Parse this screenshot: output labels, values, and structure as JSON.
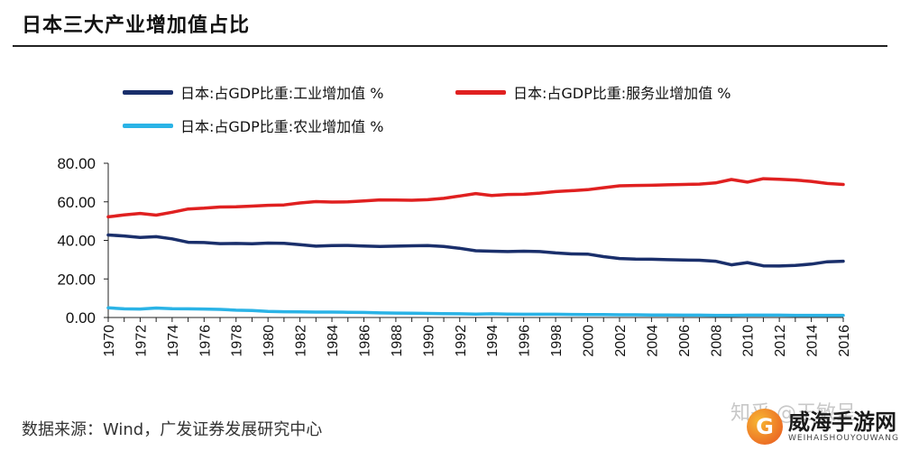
{
  "title": "日本三大产业增加值占比",
  "source": "数据来源：Wind，广发证券发展研究中心",
  "watermark": "知乎 @王敏呈",
  "logo": {
    "main": "威海手游网",
    "sub": "WEIHAISHOUYOUWANG"
  },
  "legend": [
    {
      "label": "日本:占GDP比重:工业增加值 %",
      "color": "#1a2f6b"
    },
    {
      "label": "日本:占GDP比重:服务业增加值 %",
      "color": "#e02020"
    },
    {
      "label": "日本:占GDP比重:农业增加值 %",
      "color": "#2ab3e6"
    }
  ],
  "chart_data": {
    "type": "line",
    "ylim": [
      0,
      80
    ],
    "yticks": [
      "0.00",
      "20.00",
      "40.00",
      "60.00",
      "80.00"
    ],
    "xticks": [
      "1970",
      "1972",
      "1974",
      "1976",
      "1978",
      "1980",
      "1982",
      "1984",
      "1986",
      "1988",
      "1990",
      "1992",
      "1994",
      "1996",
      "1998",
      "2000",
      "2002",
      "2004",
      "2006",
      "2008",
      "2010",
      "2012",
      "2014",
      "2016"
    ],
    "x": [
      1970,
      1971,
      1972,
      1973,
      1974,
      1975,
      1976,
      1977,
      1978,
      1979,
      1980,
      1981,
      1982,
      1983,
      1984,
      1985,
      1986,
      1987,
      1988,
      1989,
      1990,
      1991,
      1992,
      1993,
      1994,
      1995,
      1996,
      1997,
      1998,
      1999,
      2000,
      2001,
      2002,
      2003,
      2004,
      2005,
      2006,
      2007,
      2008,
      2009,
      2010,
      2011,
      2012,
      2013,
      2014,
      2015,
      2016
    ],
    "series": [
      {
        "name": "日本:占GDP比重:工业增加值 %",
        "color": "#1a2f6b",
        "values": [
          42.8,
          42.3,
          41.5,
          41.9,
          40.8,
          39.0,
          38.9,
          38.3,
          38.4,
          38.2,
          38.6,
          38.5,
          37.8,
          37.0,
          37.3,
          37.4,
          37.1,
          36.8,
          37.0,
          37.2,
          37.3,
          36.8,
          35.9,
          34.6,
          34.4,
          34.2,
          34.4,
          34.2,
          33.5,
          33.0,
          32.9,
          31.6,
          30.6,
          30.3,
          30.2,
          30.0,
          29.8,
          29.7,
          29.2,
          27.3,
          28.5,
          26.8,
          26.7,
          27.0,
          27.7,
          28.9,
          29.2
        ]
      },
      {
        "name": "日本:占GDP比重:服务业增加值 %",
        "color": "#e02020",
        "values": [
          52.2,
          53.2,
          54.0,
          53.1,
          54.6,
          56.3,
          56.7,
          57.3,
          57.4,
          57.8,
          58.2,
          58.4,
          59.4,
          60.1,
          59.9,
          60.0,
          60.5,
          61.0,
          60.9,
          60.8,
          61.1,
          61.8,
          63.0,
          64.3,
          63.3,
          63.8,
          63.9,
          64.5,
          65.3,
          65.8,
          66.3,
          67.3,
          68.3,
          68.5,
          68.6,
          68.8,
          69.0,
          69.2,
          69.8,
          71.6,
          70.2,
          72.0,
          71.7,
          71.3,
          70.6,
          69.5,
          69.0
        ]
      },
      {
        "name": "日本:占GDP比重:农业增加值 %",
        "color": "#2ab3e6",
        "values": [
          5.0,
          4.5,
          4.4,
          4.9,
          4.6,
          4.5,
          4.4,
          4.2,
          3.8,
          3.6,
          3.2,
          3.0,
          2.9,
          2.8,
          2.8,
          2.7,
          2.6,
          2.4,
          2.3,
          2.2,
          2.1,
          2.0,
          1.9,
          1.8,
          1.9,
          1.8,
          1.7,
          1.7,
          1.7,
          1.6,
          1.5,
          1.5,
          1.4,
          1.4,
          1.3,
          1.3,
          1.2,
          1.2,
          1.1,
          1.1,
          1.2,
          1.2,
          1.2,
          1.1,
          1.1,
          1.1,
          1.1
        ]
      }
    ]
  }
}
